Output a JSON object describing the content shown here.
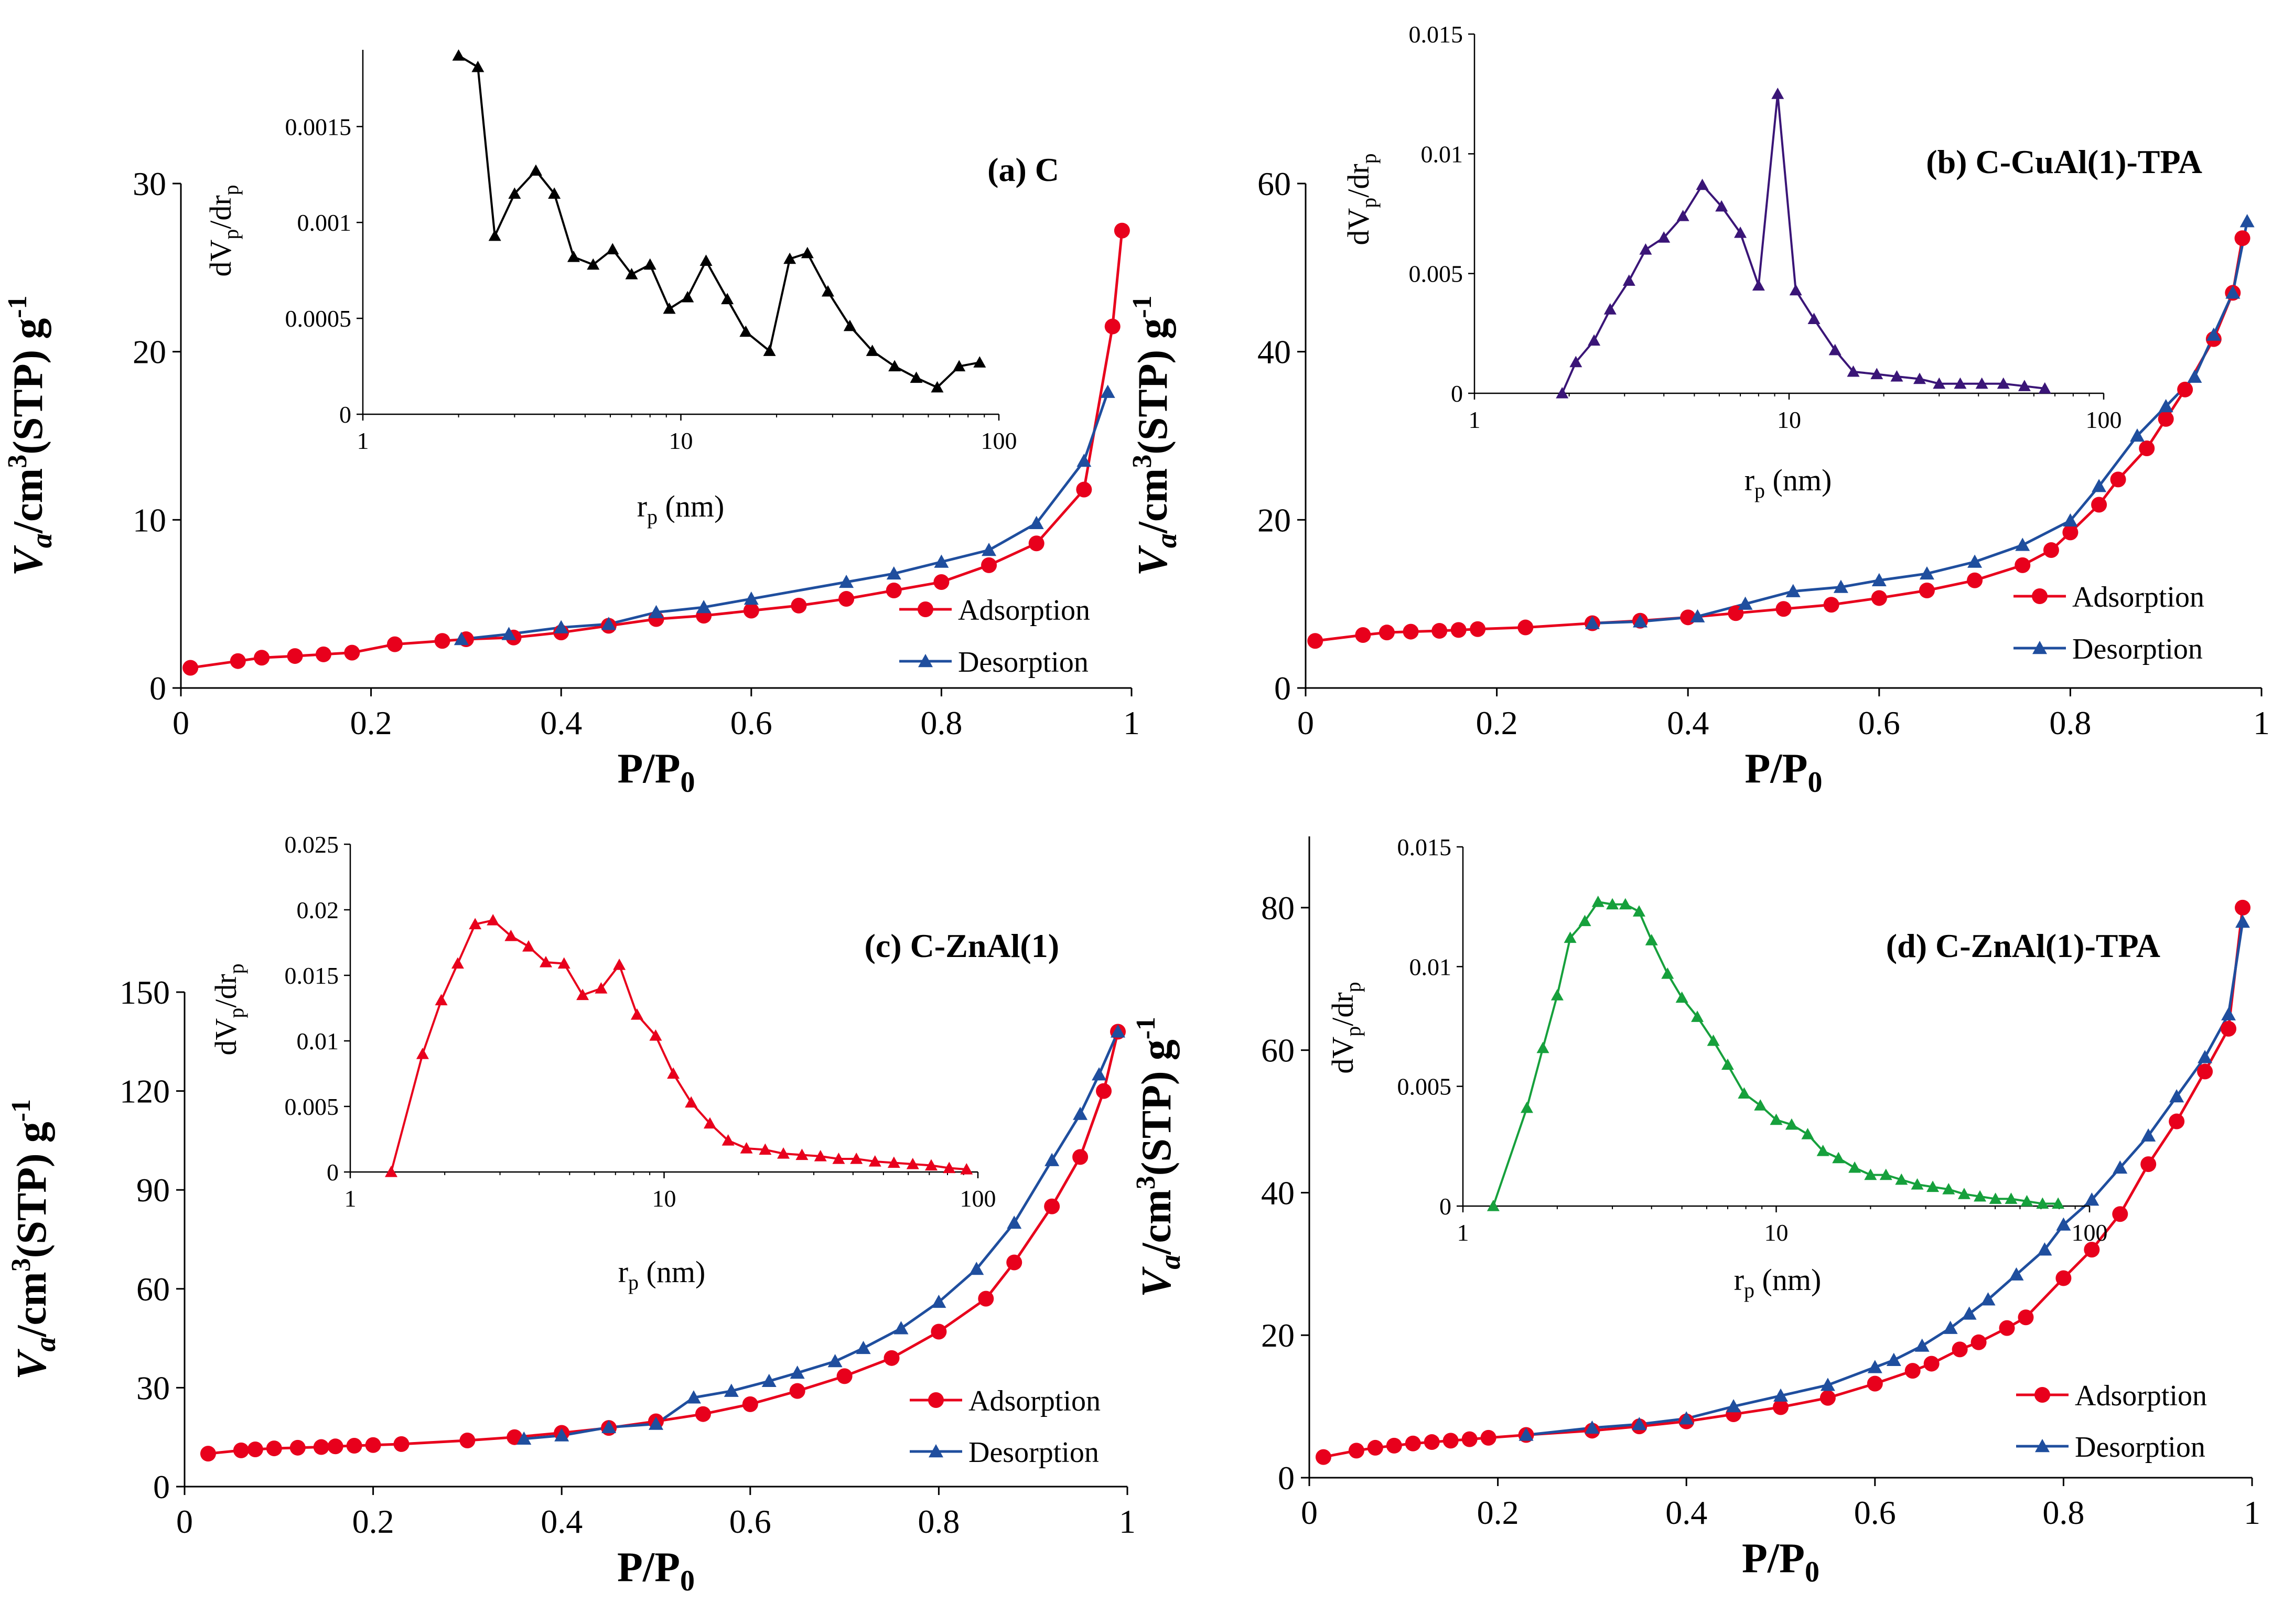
{
  "chart_data": [
    {
      "type": "line",
      "title": "(a) C",
      "xlabel": "P/P0",
      "ylabel": "Va/cm3(STP) g-1",
      "xlim": [
        0,
        1
      ],
      "ylim": [
        0,
        30
      ],
      "xticks": [
        0,
        0.2,
        0.4,
        0.6,
        0.8,
        1
      ],
      "yticks": [
        0,
        10,
        20,
        30
      ],
      "legend": "right-bottom",
      "series": [
        {
          "name": "Adsorption",
          "color": "#e8001c",
          "marker": "circle",
          "x": [
            0.01,
            0.06,
            0.085,
            0.12,
            0.15,
            0.18,
            0.225,
            0.275,
            0.3,
            0.35,
            0.4,
            0.45,
            0.5,
            0.55,
            0.6,
            0.65,
            0.7,
            0.75,
            0.8,
            0.85,
            0.9,
            0.95,
            0.98,
            0.99
          ],
          "y": [
            1.2,
            1.6,
            1.8,
            1.9,
            2.0,
            2.1,
            2.6,
            2.8,
            2.9,
            3.0,
            3.3,
            3.7,
            4.1,
            4.3,
            4.6,
            4.9,
            5.3,
            5.8,
            6.3,
            7.3,
            8.6,
            11.8,
            21.5,
            27.2
          ]
        },
        {
          "name": "Desorption",
          "color": "#1f4e9e",
          "marker": "triangle",
          "x": [
            0.295,
            0.345,
            0.4,
            0.45,
            0.5,
            0.55,
            0.6,
            0.7,
            0.75,
            0.8,
            0.85,
            0.9,
            0.95,
            0.975
          ],
          "y": [
            2.9,
            3.2,
            3.6,
            3.8,
            4.5,
            4.8,
            5.3,
            6.3,
            6.8,
            7.5,
            8.2,
            9.8,
            13.5,
            17.6
          ]
        }
      ],
      "inset": {
        "type": "line",
        "xlabel": "rp (nm)",
        "ylabel": "dVp/drp",
        "xscale": "log",
        "xlim": [
          1,
          100
        ],
        "ylim": [
          0,
          0.0019
        ],
        "xticks": [
          1,
          10,
          100
        ],
        "yticks": [
          0,
          0.0005,
          0.001,
          0.0015
        ],
        "xtick_labels": [
          "1",
          "10",
          "100"
        ],
        "ytick_labels": [
          "0",
          "0.0005",
          "0.001",
          "0.0015"
        ],
        "color": "#000000",
        "x": [
          2.0,
          2.3,
          2.6,
          3.0,
          3.5,
          4.0,
          4.6,
          5.3,
          6.1,
          7.0,
          8.0,
          9.2,
          10.5,
          12.0,
          14.0,
          16.0,
          19.0,
          22.0,
          25.0,
          29.0,
          34.0,
          40.0,
          47.0,
          55.0,
          64.0,
          75.0,
          87.0
        ],
        "y": [
          0.00187,
          0.00181,
          0.00093,
          0.00115,
          0.00127,
          0.00115,
          0.00082,
          0.00078,
          0.00086,
          0.00073,
          0.00078,
          0.00055,
          0.00061,
          0.0008,
          0.0006,
          0.00043,
          0.00033,
          0.00081,
          0.00084,
          0.00064,
          0.00046,
          0.00033,
          0.00025,
          0.00019,
          0.00014,
          0.00025,
          0.00027
        ]
      }
    },
    {
      "type": "line",
      "title": "(b) C-CuAl(1)-TPA",
      "xlabel": "P/P0",
      "ylabel": "Va/cm3(STP) g-1",
      "xlim": [
        0,
        1
      ],
      "ylim": [
        0,
        60
      ],
      "xticks": [
        0,
        0.2,
        0.4,
        0.6,
        0.8,
        1
      ],
      "yticks": [
        0,
        20,
        40,
        60
      ],
      "legend": "right-bottom",
      "series": [
        {
          "name": "Adsorption",
          "color": "#e8001c",
          "marker": "circle",
          "x": [
            0.01,
            0.06,
            0.085,
            0.11,
            0.14,
            0.16,
            0.18,
            0.23,
            0.3,
            0.35,
            0.4,
            0.45,
            0.5,
            0.55,
            0.6,
            0.65,
            0.7,
            0.75,
            0.78,
            0.8,
            0.83,
            0.85,
            0.88,
            0.9,
            0.92,
            0.95,
            0.97,
            0.98
          ],
          "y": [
            5.6,
            6.3,
            6.6,
            6.7,
            6.8,
            6.9,
            7.0,
            7.2,
            7.7,
            8.0,
            8.4,
            8.9,
            9.4,
            9.9,
            10.7,
            11.6,
            12.8,
            14.6,
            16.4,
            18.5,
            21.8,
            24.8,
            28.5,
            32.0,
            35.5,
            41.5,
            47.0,
            53.5
          ]
        },
        {
          "name": "Desorption",
          "color": "#1f4e9e",
          "marker": "triangle",
          "x": [
            0.3,
            0.35,
            0.41,
            0.46,
            0.51,
            0.56,
            0.6,
            0.65,
            0.7,
            0.75,
            0.8,
            0.83,
            0.87,
            0.9,
            0.93,
            0.95,
            0.97,
            0.985
          ],
          "y": [
            7.7,
            7.9,
            8.5,
            10.0,
            11.5,
            12.0,
            12.8,
            13.6,
            15.0,
            17.0,
            19.9,
            24.0,
            30.0,
            33.5,
            37.0,
            42.0,
            47.0,
            55.5
          ]
        }
      ],
      "inset": {
        "type": "line",
        "xlabel": "rp (nm)",
        "ylabel": "dVp/drp",
        "xscale": "log",
        "xlim": [
          1,
          100
        ],
        "ylim": [
          0,
          0.015
        ],
        "xticks": [
          1,
          10,
          100
        ],
        "yticks": [
          0,
          0.005,
          0.01,
          0.015
        ],
        "xtick_labels": [
          "1",
          "10",
          "100"
        ],
        "ytick_labels": [
          "0",
          "0.005",
          "0.01",
          "0.015"
        ],
        "color": "#3a1577",
        "x": [
          1.9,
          2.1,
          2.4,
          2.7,
          3.1,
          3.5,
          4.0,
          4.6,
          5.3,
          6.1,
          7.0,
          8.0,
          9.2,
          10.5,
          12.0,
          14.0,
          16.0,
          19.0,
          22.0,
          26.0,
          30.0,
          35.0,
          41.0,
          48.0,
          56.0,
          65.0
        ],
        "y": [
          0.0,
          0.0013,
          0.0022,
          0.0035,
          0.0047,
          0.006,
          0.0065,
          0.0074,
          0.0087,
          0.0078,
          0.0067,
          0.0045,
          0.0125,
          0.0043,
          0.0031,
          0.0018,
          0.0009,
          0.0008,
          0.0007,
          0.0006,
          0.0004,
          0.0004,
          0.0004,
          0.0004,
          0.0003,
          0.0002
        ]
      }
    },
    {
      "type": "line",
      "title": "(c) C-ZnAl(1)",
      "xlabel": "P/P0",
      "ylabel": "Va/cm3(STP) g-1",
      "xlim": [
        0,
        1
      ],
      "ylim": [
        0,
        150
      ],
      "xticks": [
        0,
        0.2,
        0.4,
        0.6,
        0.8,
        1
      ],
      "yticks": [
        0,
        30,
        60,
        90,
        120,
        150
      ],
      "legend": "right-bottom",
      "series": [
        {
          "name": "Adsorption",
          "color": "#e8001c",
          "marker": "circle",
          "x": [
            0.025,
            0.06,
            0.075,
            0.095,
            0.12,
            0.145,
            0.16,
            0.18,
            0.2,
            0.23,
            0.3,
            0.35,
            0.4,
            0.45,
            0.5,
            0.55,
            0.6,
            0.65,
            0.7,
            0.75,
            0.8,
            0.85,
            0.88,
            0.92,
            0.95,
            0.975,
            0.99
          ],
          "y": [
            10.0,
            11.0,
            11.3,
            11.6,
            11.8,
            12.0,
            12.2,
            12.4,
            12.6,
            12.9,
            14.0,
            15.0,
            16.3,
            17.8,
            19.8,
            22.0,
            25.0,
            29.0,
            33.5,
            39.0,
            47.0,
            57.0,
            68.0,
            85.0,
            100.0,
            120.0,
            138.0
          ]
        },
        {
          "name": "Desorption",
          "color": "#1f4e9e",
          "marker": "triangle",
          "x": [
            0.36,
            0.4,
            0.45,
            0.5,
            0.54,
            0.58,
            0.62,
            0.65,
            0.69,
            0.72,
            0.76,
            0.8,
            0.84,
            0.88,
            0.92,
            0.95,
            0.97,
            0.99
          ],
          "y": [
            14.5,
            15.5,
            18.0,
            19.0,
            27.0,
            29.0,
            32.0,
            34.5,
            38.0,
            42.0,
            48.0,
            56.0,
            66.0,
            80.0,
            99.0,
            113.0,
            125.0,
            138.0
          ]
        }
      ],
      "inset": {
        "type": "line",
        "xlabel": "rp (nm)",
        "ylabel": "dVp/drp",
        "xscale": "log",
        "xlim": [
          1,
          100
        ],
        "ylim": [
          0,
          0.025
        ],
        "xticks": [
          1,
          10,
          100
        ],
        "yticks": [
          0,
          0.005,
          0.01,
          0.015,
          0.02,
          0.025
        ],
        "xtick_labels": [
          "1",
          "10",
          "100"
        ],
        "ytick_labels": [
          "0",
          "0.005",
          "0.01",
          "0.015",
          "0.02",
          "0.025"
        ],
        "color": "#e8001c",
        "x": [
          1.35,
          1.7,
          1.95,
          2.2,
          2.5,
          2.85,
          3.25,
          3.7,
          4.2,
          4.8,
          5.5,
          6.3,
          7.2,
          8.2,
          9.4,
          10.7,
          12.2,
          14.0,
          16.0,
          18.3,
          21.0,
          24.0,
          27.5,
          31.5,
          36.0,
          41.0,
          47.0,
          54.0,
          62.0,
          71.0,
          81.0,
          92.0
        ],
        "y": [
          0.0,
          0.009,
          0.0131,
          0.0159,
          0.0189,
          0.0192,
          0.018,
          0.0172,
          0.016,
          0.0159,
          0.0135,
          0.014,
          0.0158,
          0.012,
          0.0104,
          0.0075,
          0.0053,
          0.0037,
          0.0024,
          0.0018,
          0.0017,
          0.0014,
          0.0013,
          0.0012,
          0.001,
          0.001,
          0.0008,
          0.0007,
          0.0006,
          0.0005,
          0.0003,
          0.0002
        ]
      }
    },
    {
      "type": "line",
      "title": "(d) C-ZnAl(1)-TPA",
      "xlabel": "P/P0",
      "ylabel": "Va/cm3(STP) g-1",
      "xlim": [
        0,
        1
      ],
      "ylim": [
        0,
        90
      ],
      "xticks": [
        0,
        0.2,
        0.4,
        0.6,
        0.8,
        1
      ],
      "yticks": [
        0,
        20,
        40,
        60,
        80
      ],
      "legend": "right-bottom",
      "series": [
        {
          "name": "Adsorption",
          "color": "#e8001c",
          "marker": "circle",
          "x": [
            0.015,
            0.05,
            0.07,
            0.09,
            0.11,
            0.13,
            0.15,
            0.17,
            0.19,
            0.23,
            0.3,
            0.35,
            0.4,
            0.45,
            0.5,
            0.55,
            0.6,
            0.64,
            0.66,
            0.69,
            0.71,
            0.74,
            0.76,
            0.8,
            0.83,
            0.86,
            0.89,
            0.92,
            0.95,
            0.975,
            0.99
          ],
          "y": [
            2.9,
            3.8,
            4.2,
            4.5,
            4.8,
            5.0,
            5.2,
            5.4,
            5.6,
            6.0,
            6.6,
            7.2,
            7.9,
            8.9,
            9.9,
            11.2,
            13.2,
            15.0,
            16.0,
            18.0,
            19.0,
            21.0,
            22.5,
            28.0,
            32.0,
            37.0,
            44.0,
            50.0,
            57.0,
            63.0,
            80.0
          ]
        },
        {
          "name": "Desorption",
          "color": "#1f4e9e",
          "marker": "triangle",
          "x": [
            0.23,
            0.3,
            0.35,
            0.4,
            0.45,
            0.5,
            0.55,
            0.6,
            0.62,
            0.65,
            0.68,
            0.7,
            0.72,
            0.75,
            0.78,
            0.8,
            0.83,
            0.86,
            0.89,
            0.92,
            0.95,
            0.975,
            0.99
          ],
          "y": [
            6.0,
            7.0,
            7.5,
            8.3,
            10.0,
            11.5,
            13.0,
            15.5,
            16.5,
            18.5,
            21.0,
            23.0,
            25.0,
            28.5,
            32.0,
            35.5,
            39.0,
            43.5,
            48.0,
            53.5,
            59.0,
            65.0,
            78.0
          ]
        }
      ],
      "inset": {
        "type": "line",
        "xlabel": "rp (nm)",
        "ylabel": "dVp/drp",
        "xscale": "log",
        "xlim": [
          1,
          100
        ],
        "ylim": [
          0,
          0.015
        ],
        "xticks": [
          1,
          10,
          100
        ],
        "yticks": [
          0,
          0.005,
          0.01,
          0.015
        ],
        "xtick_labels": [
          "1",
          "10",
          "100"
        ],
        "ytick_labels": [
          "0",
          "0.005",
          "0.01",
          "0.015"
        ],
        "color": "#16a03c",
        "x": [
          1.25,
          1.6,
          1.8,
          2.0,
          2.2,
          2.45,
          2.7,
          3.0,
          3.3,
          3.65,
          4.0,
          4.5,
          5.0,
          5.6,
          6.3,
          7.0,
          7.9,
          8.9,
          10.0,
          11.2,
          12.6,
          14.1,
          15.8,
          17.8,
          20.0,
          22.4,
          25.1,
          28.2,
          31.6,
          35.5,
          39.8,
          44.7,
          50.1,
          56.2,
          63.1,
          70.8,
          79.4
        ],
        "y": [
          0.0,
          0.0041,
          0.0066,
          0.0088,
          0.0112,
          0.0119,
          0.0127,
          0.0126,
          0.0126,
          0.0123,
          0.0111,
          0.0097,
          0.0087,
          0.0079,
          0.0069,
          0.0059,
          0.0047,
          0.0042,
          0.0036,
          0.0034,
          0.003,
          0.0023,
          0.002,
          0.0016,
          0.0013,
          0.0013,
          0.0011,
          0.0009,
          0.0008,
          0.0007,
          0.0005,
          0.0004,
          0.0003,
          0.0003,
          0.0002,
          0.0001,
          0.0001
        ]
      }
    }
  ]
}
